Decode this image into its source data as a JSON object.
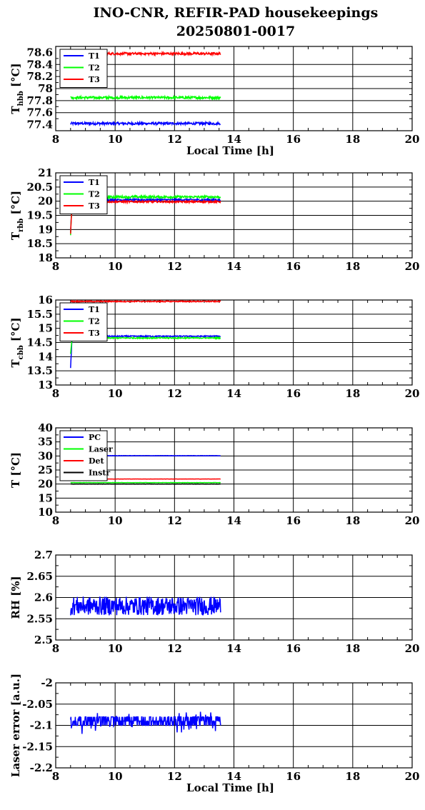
{
  "title_line1": "INO-CNR, REFIR-PAD housekeepings",
  "title_line2": "20250801-0017",
  "chart_data": [
    {
      "type": "line",
      "ylabel_main": "T",
      "ylabel_sub": "hbb",
      "ylabel_unit": "[°C]",
      "xlabel": "Local Time [h]",
      "xlim": [
        8,
        20
      ],
      "ylim": [
        77.3,
        78.7
      ],
      "xticks": [
        "8",
        "10",
        "12",
        "14",
        "16",
        "18",
        "20"
      ],
      "yticks": [
        "77.4",
        "77.6",
        "77.8",
        "78",
        "78.2",
        "78.4",
        "78.6"
      ],
      "grid": true,
      "legend_position": "top-left",
      "series": [
        {
          "name": "T1",
          "color": "#0000ff",
          "base": 77.42,
          "noise": 0.02,
          "xstart": 8.5,
          "xend": 13.55,
          "start_spike": null,
          "plateaus": []
        },
        {
          "name": "T2",
          "color": "#00ff00",
          "base": 77.85,
          "noise": 0.02,
          "xstart": 8.5,
          "xend": 13.55,
          "start_spike": null,
          "plateaus": []
        },
        {
          "name": "T3",
          "color": "#ff0000",
          "base": 78.58,
          "noise": 0.02,
          "xstart": 8.5,
          "xend": 13.55,
          "start_spike": null,
          "plateaus": []
        }
      ]
    },
    {
      "type": "line",
      "ylabel_main": "T",
      "ylabel_sub": "rbb",
      "ylabel_unit": "[°C]",
      "xlabel": "",
      "xlim": [
        8,
        20
      ],
      "ylim": [
        18,
        21
      ],
      "xticks": [
        "8",
        "10",
        "12",
        "14",
        "16",
        "18",
        "20"
      ],
      "yticks": [
        "18",
        "18.5",
        "19",
        "19.5",
        "20",
        "20.5",
        "21"
      ],
      "grid": true,
      "legend_position": "top-left",
      "series": [
        {
          "name": "T1",
          "color": "#0000ff",
          "base": 20.05,
          "noise": 0.03,
          "xstart": 8.5,
          "xend": 13.55,
          "start_spike": 18.9,
          "plateaus": []
        },
        {
          "name": "T2",
          "color": "#00ff00",
          "base": 20.15,
          "noise": 0.04,
          "xstart": 8.5,
          "xend": 13.55,
          "start_spike": 18.8,
          "plateaus": []
        },
        {
          "name": "T3",
          "color": "#ff0000",
          "base": 19.98,
          "noise": 0.03,
          "xstart": 8.5,
          "xend": 13.55,
          "start_spike": 18.85,
          "plateaus": []
        }
      ]
    },
    {
      "type": "line",
      "ylabel_main": "T",
      "ylabel_sub": "cbb",
      "ylabel_unit": "[°C]",
      "xlabel": "",
      "xlim": [
        8,
        20
      ],
      "ylim": [
        13,
        16
      ],
      "xticks": [
        "8",
        "10",
        "12",
        "14",
        "16",
        "18",
        "20"
      ],
      "yticks": [
        "13",
        "13.5",
        "14",
        "14.5",
        "15",
        "15.5",
        "16"
      ],
      "grid": true,
      "legend_position": "top-left",
      "series": [
        {
          "name": "T1",
          "color": "#0000ff",
          "base": 14.72,
          "noise": 0.02,
          "xstart": 8.5,
          "xend": 13.55,
          "start_spike": 13.6,
          "plateaus": []
        },
        {
          "name": "T2",
          "color": "#00ff00",
          "base": 14.66,
          "noise": 0.02,
          "xstart": 8.5,
          "xend": 13.55,
          "start_spike": 14.1,
          "plateaus": []
        },
        {
          "name": "T3",
          "color": "#ff0000",
          "base": 15.95,
          "noise": 0.02,
          "xstart": 8.5,
          "xend": 13.55,
          "start_spike": null,
          "plateaus": []
        }
      ]
    },
    {
      "type": "line",
      "ylabel_main": "T [°C]",
      "ylabel_sub": "",
      "ylabel_unit": "",
      "xlabel": "",
      "xlim": [
        8,
        20
      ],
      "ylim": [
        10,
        40
      ],
      "xticks": [
        "8",
        "10",
        "12",
        "14",
        "16",
        "18",
        "20"
      ],
      "yticks": [
        "10",
        "15",
        "20",
        "25",
        "30",
        "35",
        "40"
      ],
      "grid": true,
      "legend_position": "top-left",
      "series": [
        {
          "name": "PC",
          "color": "#0000ff",
          "base": 30.1,
          "noise": 0.05,
          "xstart": 8.5,
          "xend": 13.55,
          "start_spike": null,
          "plateaus": []
        },
        {
          "name": "Laser",
          "color": "#00ff00",
          "base": 20.5,
          "noise": 0.05,
          "xstart": 8.5,
          "xend": 13.55,
          "start_spike": null,
          "plateaus": []
        },
        {
          "name": "Det",
          "color": "#ff0000",
          "base": 21.8,
          "noise": 0.03,
          "xstart": 8.5,
          "xend": 13.55,
          "start_spike": null,
          "plateaus": []
        },
        {
          "name": "Instr",
          "color": "#000000",
          "base": 20.0,
          "noise": 0.05,
          "xstart": 8.5,
          "xend": 13.55,
          "start_spike": null,
          "plateaus": []
        }
      ]
    },
    {
      "type": "line",
      "ylabel_main": "RH [%]",
      "ylabel_sub": "",
      "ylabel_unit": "",
      "xlabel": "",
      "xlim": [
        8,
        20
      ],
      "ylim": [
        2.5,
        2.7
      ],
      "xticks": [
        "8",
        "10",
        "12",
        "14",
        "16",
        "18",
        "20"
      ],
      "yticks": [
        "2.5",
        "2.55",
        "2.6",
        "2.65",
        "2.7"
      ],
      "grid": true,
      "legend_position": "none",
      "series": [
        {
          "name": "",
          "color": "#0000ff",
          "base": 2.58,
          "noise": 0.022,
          "xstart": 8.5,
          "xend": 13.55,
          "start_spike": null,
          "plateaus": []
        }
      ]
    },
    {
      "type": "line",
      "ylabel_main": "Laser error [a.u.]",
      "ylabel_sub": "",
      "ylabel_unit": "",
      "xlabel": "Local Time [h]",
      "xlim": [
        8,
        20
      ],
      "ylim": [
        -2.2,
        -2
      ],
      "xticks": [
        "8",
        "10",
        "12",
        "14",
        "16",
        "18",
        "20"
      ],
      "yticks": [
        "-2.2",
        "-2.15",
        "-2.1",
        "-2.05",
        "-2"
      ],
      "grid": true,
      "legend_position": "none",
      "series": [
        {
          "name": "",
          "color": "#0000ff",
          "base": -2.093,
          "noise": 0.009,
          "xstart": 8.5,
          "xend": 13.55,
          "start_spike": null,
          "plateaus": [
            -2.08,
            -2.09,
            -2.1
          ]
        }
      ]
    }
  ]
}
